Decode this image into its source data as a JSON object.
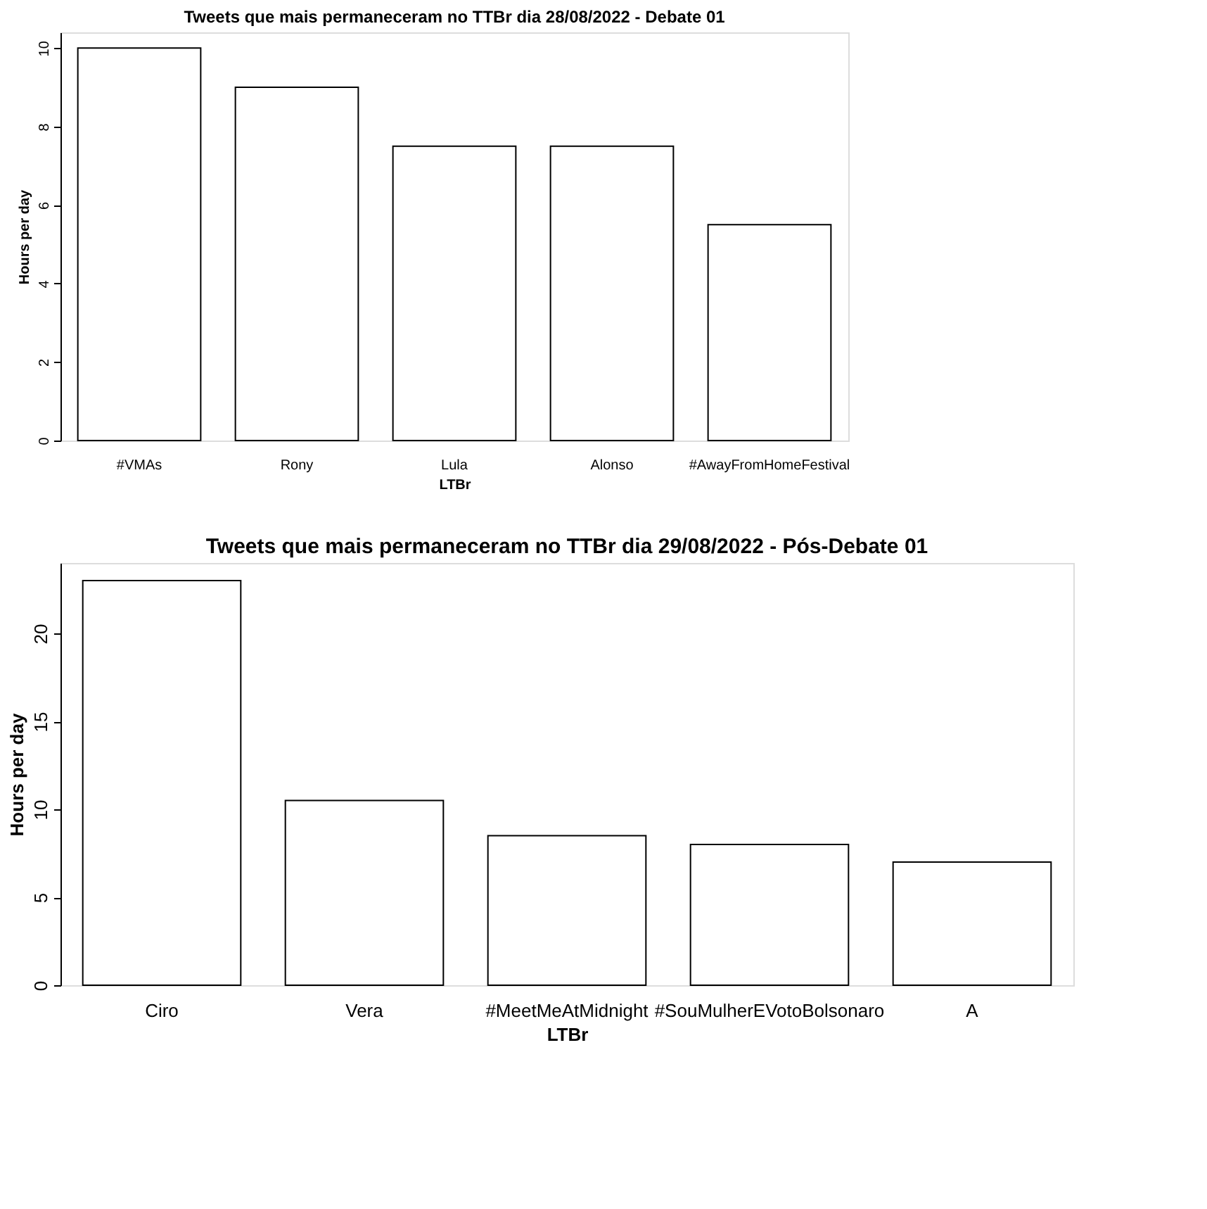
{
  "chart_data": [
    {
      "type": "bar",
      "title": "Tweets que mais permaneceram no TTBr dia 28/08/2022 - Debate 01",
      "xlabel": "LTBr",
      "ylabel": "Hours per day",
      "categories": [
        "#VMAs",
        "Rony",
        "Lula",
        "Alonso",
        "#AwayFromHomeFestival"
      ],
      "values": [
        10,
        9,
        7.5,
        7.5,
        5.5
      ],
      "ylim": [
        0,
        10.4
      ],
      "yticks": [
        0,
        2,
        4,
        6,
        8,
        10
      ],
      "grid": false
    },
    {
      "type": "bar",
      "title": "Tweets que mais permaneceram no TTBr dia 29/08/2022 - Pós-Debate 01",
      "xlabel": "LTBr",
      "ylabel": "Hours per day",
      "categories": [
        "Ciro",
        "Vera",
        "#MeetMeAtMidnight",
        "#SouMulherEVotoBolsonaro",
        "A"
      ],
      "values": [
        23,
        10.5,
        8.5,
        8,
        7
      ],
      "ylim": [
        0,
        24
      ],
      "yticks": [
        0,
        5,
        10,
        15,
        20
      ],
      "grid": false
    }
  ]
}
